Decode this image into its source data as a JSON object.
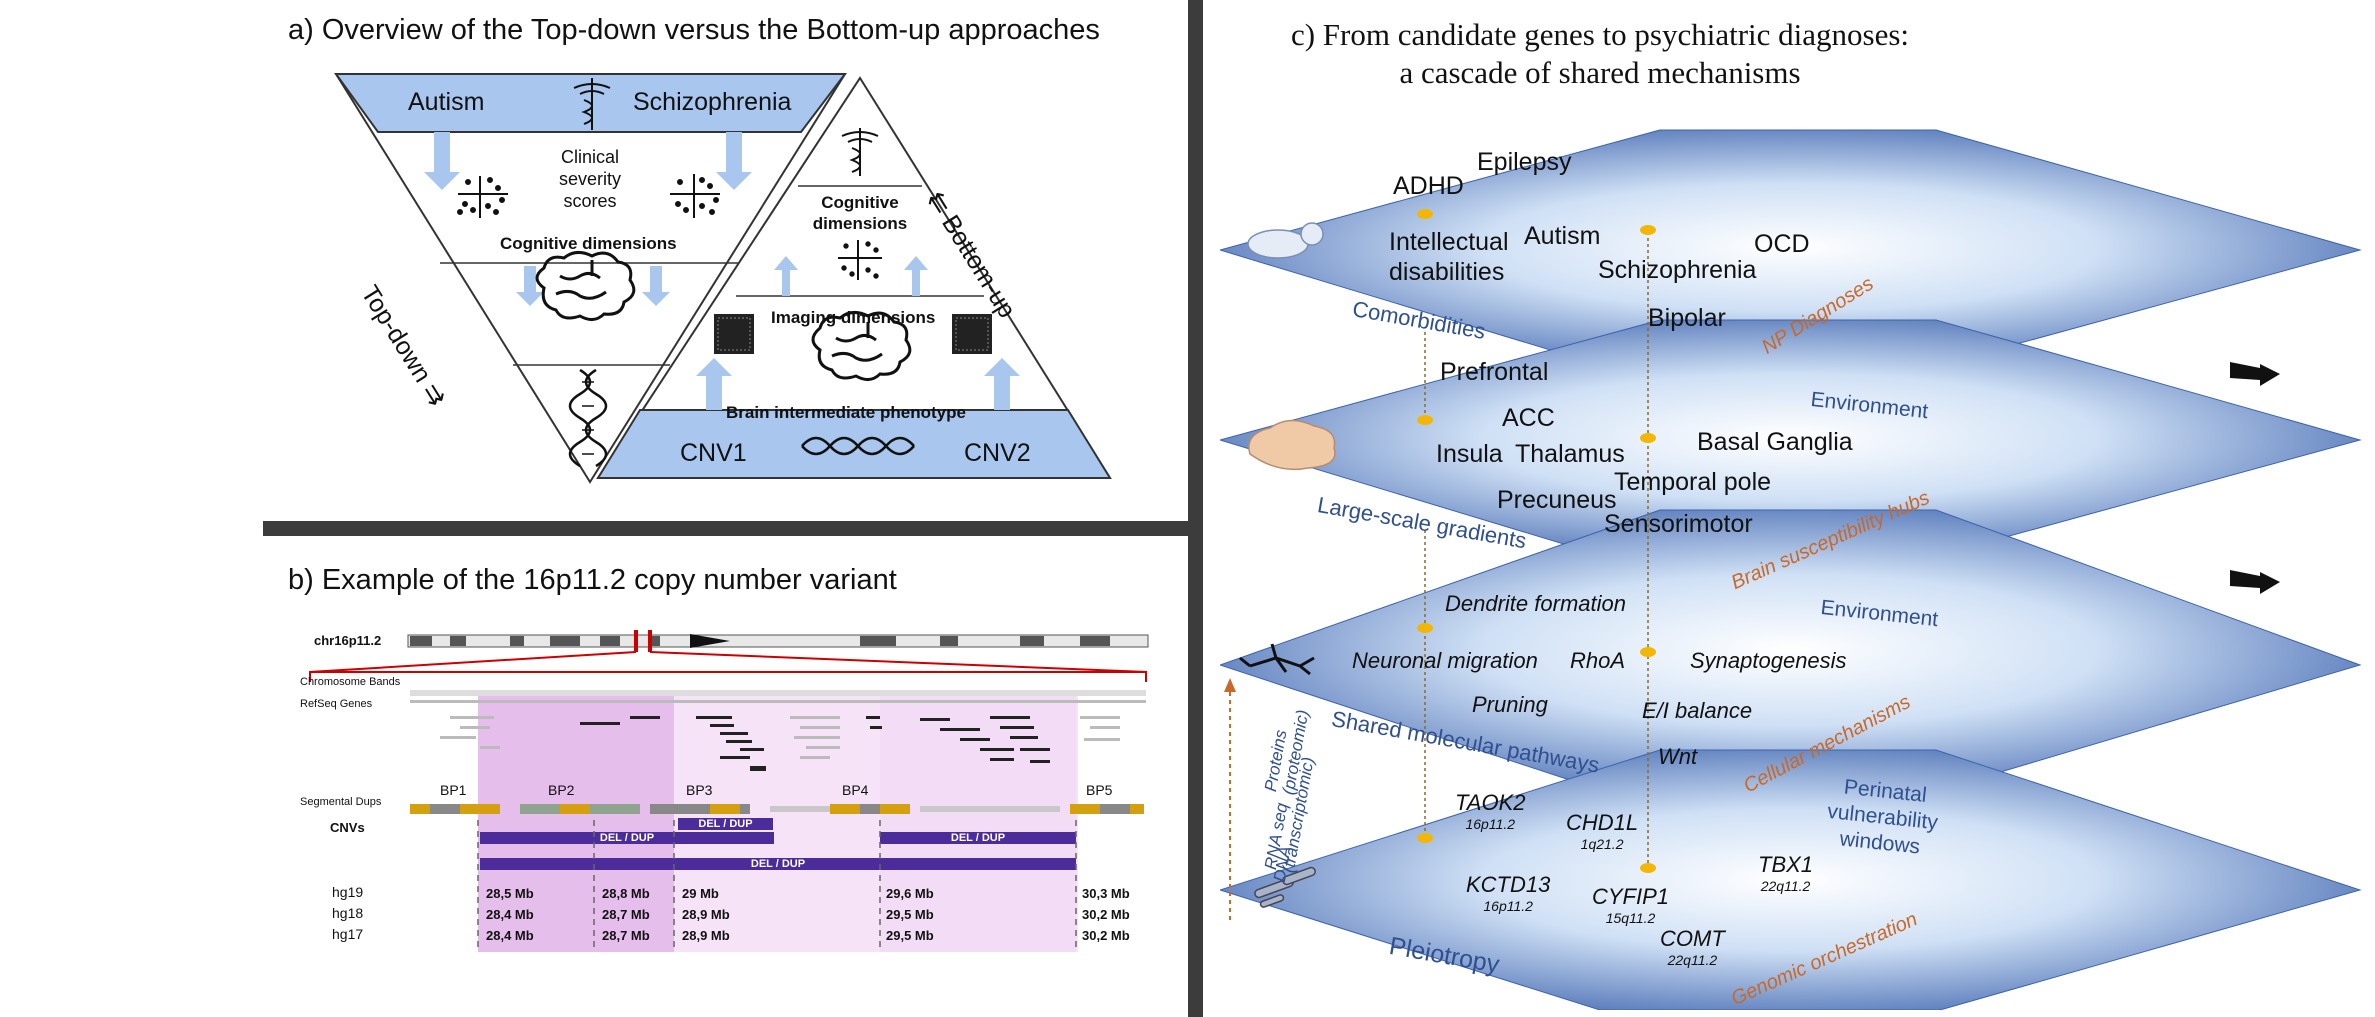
{
  "panel_a": {
    "title": "a) Overview of the Top-down versus the Bottom-up approaches",
    "autism": "Autism",
    "schizophrenia": "Schizophrenia",
    "clinical_severity": [
      "Clinical",
      "severity",
      "scores"
    ],
    "cognitive_dimensions": "Cognitive dimensions",
    "top_down": "Top-down ⇉",
    "bottom_up": "⇇ Bottom-up",
    "cognitive_dimensions_right": [
      "Cognitive",
      "dimensions"
    ],
    "imaging_dimensions": "Imaging dimensions",
    "brain_intermediate_phenotype": "Brain intermediate phenotype",
    "cnv1": "CNV1",
    "cnv2": "CNV2",
    "colors": {
      "band": "#a9c6ee",
      "arrow": "#a9c6ee"
    }
  },
  "panel_b": {
    "title": "b) Example of the 16p11.2 copy number variant",
    "chrom_label": "chr16p11.2",
    "row_labels": [
      "Chromosome Bands",
      "RefSeq Genes",
      "Segmental Dups",
      "CNVs"
    ],
    "bp_labels": [
      "BP1",
      "BP2",
      "BP3",
      "BP4",
      "BP5"
    ],
    "cnv_bars": [
      "DEL / DUP",
      "DEL / DUP",
      "DEL / DUP",
      "DEL / DUP"
    ],
    "builds": [
      "hg19",
      "hg18",
      "hg17"
    ],
    "positions": [
      [
        "28,5 Mb",
        "28,8 Mb",
        "29 Mb",
        "29,6 Mb",
        "30,3 Mb"
      ],
      [
        "28,4 Mb",
        "28,7 Mb",
        "28,9 Mb",
        "29,5 Mb",
        "30,2 Mb"
      ],
      [
        "28,4 Mb",
        "28,7 Mb",
        "28,9 Mb",
        "29,5 Mb",
        "30,2 Mb"
      ]
    ],
    "colors": {
      "highlight_dark": "#dca8e6",
      "highlight_light": "#f6e3f7",
      "bar": "#4b2c9a"
    }
  },
  "panel_c": {
    "title_line1": "c) From candidate genes to psychiatric diagnoses:",
    "title_line2": "a cascade of shared mechanisms",
    "layer1": {
      "items": [
        "ADHD",
        "Epilepsy",
        "Autism",
        "OCD",
        "Intellectual",
        "disabilities",
        "Schizophrenia",
        "Bipolar"
      ],
      "left_label": "Comorbidities",
      "right_label": "NP Diagnoses"
    },
    "layer2": {
      "items": [
        "Prefrontal",
        "ACC",
        "Insula",
        "Thalamus",
        "Basal Ganglia",
        "Temporal pole",
        "Precuneus",
        "Sensorimotor"
      ],
      "left_label": "Large-scale gradients",
      "right_label": "Brain susceptibility hubs",
      "environment": "Environment"
    },
    "layer3": {
      "items": [
        "Dendrite formation",
        "Neuronal migration",
        "RhoA",
        "Synaptogenesis",
        "Pruning",
        "E/I balance",
        "Wnt"
      ],
      "left_label": "Shared molecular pathways",
      "right_label": "Cellular mechanisms",
      "environment": "Environment"
    },
    "layer4": {
      "genes": [
        {
          "name": "TAOK2",
          "locus": "16p11.2"
        },
        {
          "name": "CHD1L",
          "locus": "1q21.2"
        },
        {
          "name": "KCTD13",
          "locus": "16p11.2"
        },
        {
          "name": "CYFIP1",
          "locus": "15q11.2"
        },
        {
          "name": "TBX1",
          "locus": "22q11.2"
        },
        {
          "name": "COMT",
          "locus": "22q11.2"
        }
      ],
      "left_label": "Pleiotropy",
      "right_label": "Genomic orchestration",
      "perinatal": [
        "Perinatal",
        "vulnerability",
        "windows"
      ]
    },
    "omics": [
      "Proteins",
      "(proteomic)",
      "RNA seq",
      "(transcriptomic)",
      "DNA"
    ],
    "colors": {
      "layer": "#4a6fb5",
      "orange": "#c8692a",
      "blue_label": "#2f4f8f",
      "dot": "#f2b705"
    }
  }
}
